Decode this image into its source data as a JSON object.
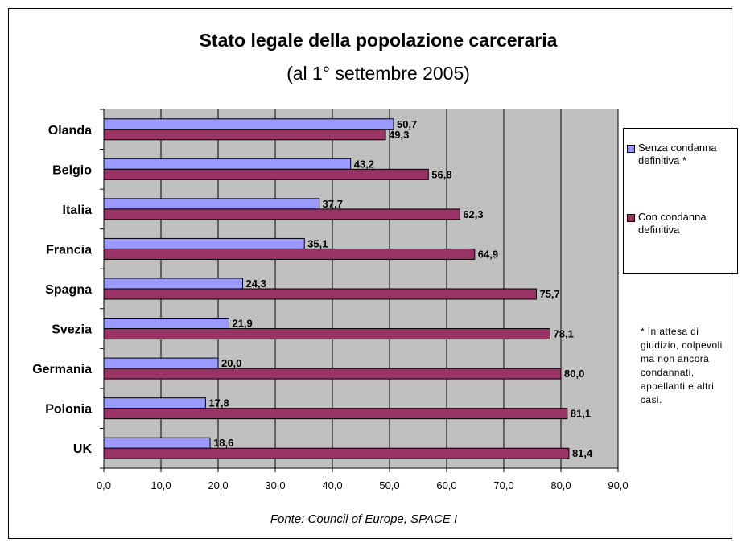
{
  "chart_data": {
    "type": "bar",
    "orientation": "horizontal",
    "title": "Stato legale della popolazione carceraria",
    "subtitle": "(al 1° settembre 2005)",
    "caption": "Fonte: Council of Europe, SPACE I",
    "categories": [
      "Olanda",
      "Belgio",
      "Italia",
      "Francia",
      "Spagna",
      "Svezia",
      "Germania",
      "Polonia",
      "UK"
    ],
    "series": [
      {
        "name": "Senza condanna definitiva *",
        "color": "#9999ff",
        "values": [
          50.7,
          43.2,
          37.7,
          35.1,
          24.3,
          21.9,
          20.0,
          17.8,
          18.6
        ],
        "labels": [
          "50,7",
          "43,2",
          "37,7",
          "35,1",
          "24,3",
          "21,9",
          "20,0",
          "17,8",
          "18,6"
        ]
      },
      {
        "name": "Con condanna definitiva",
        "color": "#993366",
        "values": [
          49.3,
          56.8,
          62.3,
          64.9,
          75.7,
          78.1,
          80.0,
          81.1,
          81.4
        ],
        "labels": [
          "49,3",
          "56,8",
          "62,3",
          "64,9",
          "75,7",
          "78,1",
          "80,0",
          "81,1",
          "81,4"
        ]
      }
    ],
    "xlim": [
      0,
      90
    ],
    "xticks": [
      0,
      10,
      20,
      30,
      40,
      50,
      60,
      70,
      80,
      90
    ],
    "xtick_labels": [
      "0,0",
      "10,0",
      "20,0",
      "30,0",
      "40,0",
      "50,0",
      "60,0",
      "70,0",
      "80,0",
      "90,0"
    ],
    "grid": true,
    "plot_background": "#c0c0c0",
    "legend_position": "right",
    "footnote": "* In attesa di giudizio, colpevoli ma non ancora condannati, appellanti e altri casi."
  }
}
